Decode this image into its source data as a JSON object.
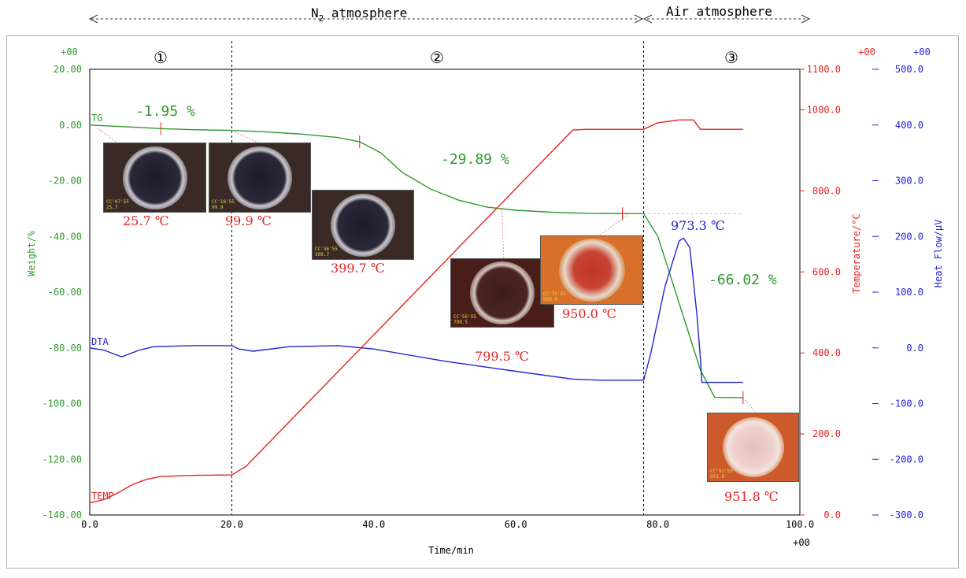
{
  "header": {
    "n2_label": "N",
    "n2_sub": "2",
    "n2_rest": " atmosphere",
    "air_label": "Air atmosphere"
  },
  "stages": [
    "①",
    "②",
    "③"
  ],
  "axes": {
    "x_label": "Time/min",
    "x_exp": "+00",
    "weight_label": "Weight/%",
    "weight_exp": "+00",
    "temp_label": "Temperature/°C",
    "temp_exp": "+00",
    "heat_label": "Heat Flow/μV",
    "heat_exp": "+00",
    "x_ticks": [
      "0.0",
      "20.0",
      "40.0",
      "60.0",
      "80.0",
      "100.0"
    ],
    "weight_ticks": [
      "20.00",
      "0.00",
      "-20.00",
      "-40.00",
      "-60.00",
      "-80.00",
      "-100.00",
      "-120.00",
      "-140.00"
    ],
    "temp_ticks": [
      "1100.0",
      "1000.0",
      "800.0",
      "600.0",
      "400.0",
      "200.0",
      "0.0"
    ],
    "heat_ticks": [
      "500.0",
      "400.0",
      "300.0",
      "200.0",
      "100.0",
      "0.0",
      "-100.0",
      "-200.0",
      "-300.0"
    ]
  },
  "curve_labels": {
    "tg": "TG",
    "dta": "DTA",
    "temp": "TEMP"
  },
  "annotations": {
    "loss1": "-1.95 %",
    "loss2": "-29.89 %",
    "loss3": "-66.02 %",
    "peak": "973.3 ℃"
  },
  "photos": [
    {
      "label": "25.7 ℃",
      "tone": "dark"
    },
    {
      "label": "99.9 ℃",
      "tone": "dark"
    },
    {
      "label": "399.7 ℃",
      "tone": "dark"
    },
    {
      "label": "799.5 ℃",
      "tone": "brown"
    },
    {
      "label": "950.0 ℃",
      "tone": "orange"
    },
    {
      "label": "951.8 ℃",
      "tone": "orange-light"
    }
  ],
  "colors": {
    "tg": "#2e9a2e",
    "dta": "#2323d8",
    "temp": "#e62222",
    "axis": "#000000"
  },
  "chart_data": {
    "type": "line",
    "xlabel": "Time/min",
    "xlim": [
      0,
      100
    ],
    "dividers_x": [
      20,
      78
    ],
    "series": [
      {
        "name": "TG",
        "axis": "Weight/%",
        "ylim": [
          -140,
          20
        ],
        "x": [
          0,
          5,
          10,
          15,
          20,
          25,
          30,
          35,
          38,
          41,
          44,
          48,
          52,
          56,
          60,
          65,
          70,
          75,
          78,
          80,
          82,
          84,
          86,
          88,
          92
        ],
        "y": [
          0,
          -0.6,
          -1.3,
          -1.7,
          -1.95,
          -2.5,
          -3.3,
          -4.5,
          -6,
          -10,
          -17,
          -23,
          -27,
          -29.5,
          -30.6,
          -31.3,
          -31.7,
          -31.8,
          -31.84,
          -40,
          -56,
          -72,
          -88,
          -97.8,
          -97.86
        ]
      },
      {
        "name": "DTA",
        "axis": "Heat Flow/μV",
        "ylim": [
          -300,
          500
        ],
        "x": [
          0,
          2,
          4.5,
          7,
          9,
          14,
          20,
          21,
          23,
          28,
          35,
          40,
          50,
          60,
          68,
          72,
          78,
          79,
          81,
          83,
          83.6,
          84.5,
          85.5,
          86,
          86.2,
          92
        ],
        "y": [
          0,
          -4,
          -16,
          -4,
          2,
          4,
          4,
          -2,
          -6,
          2,
          4,
          -2,
          -24,
          -42,
          -56,
          -58,
          -58,
          -10,
          110,
          192,
          197,
          180,
          60,
          -20,
          -62,
          -62
        ]
      },
      {
        "name": "TEMP",
        "axis": "Temperature/°C",
        "ylim": [
          0,
          1100
        ],
        "x": [
          0,
          2,
          4,
          6,
          8,
          10,
          15,
          20,
          22,
          68,
          70,
          78,
          80,
          83,
          85,
          86,
          92
        ],
        "y": [
          30,
          38,
          55,
          75,
          88,
          95,
          98,
          99,
          120,
          950,
          952,
          952,
          968,
          975,
          975,
          952,
          952
        ]
      }
    ],
    "annotations": [
      {
        "text": "-1.95 %",
        "series": "TG"
      },
      {
        "text": "-29.89 %",
        "series": "TG"
      },
      {
        "text": "-66.02 %",
        "series": "TG"
      },
      {
        "text": "973.3 ℃",
        "series": "DTA"
      }
    ]
  }
}
